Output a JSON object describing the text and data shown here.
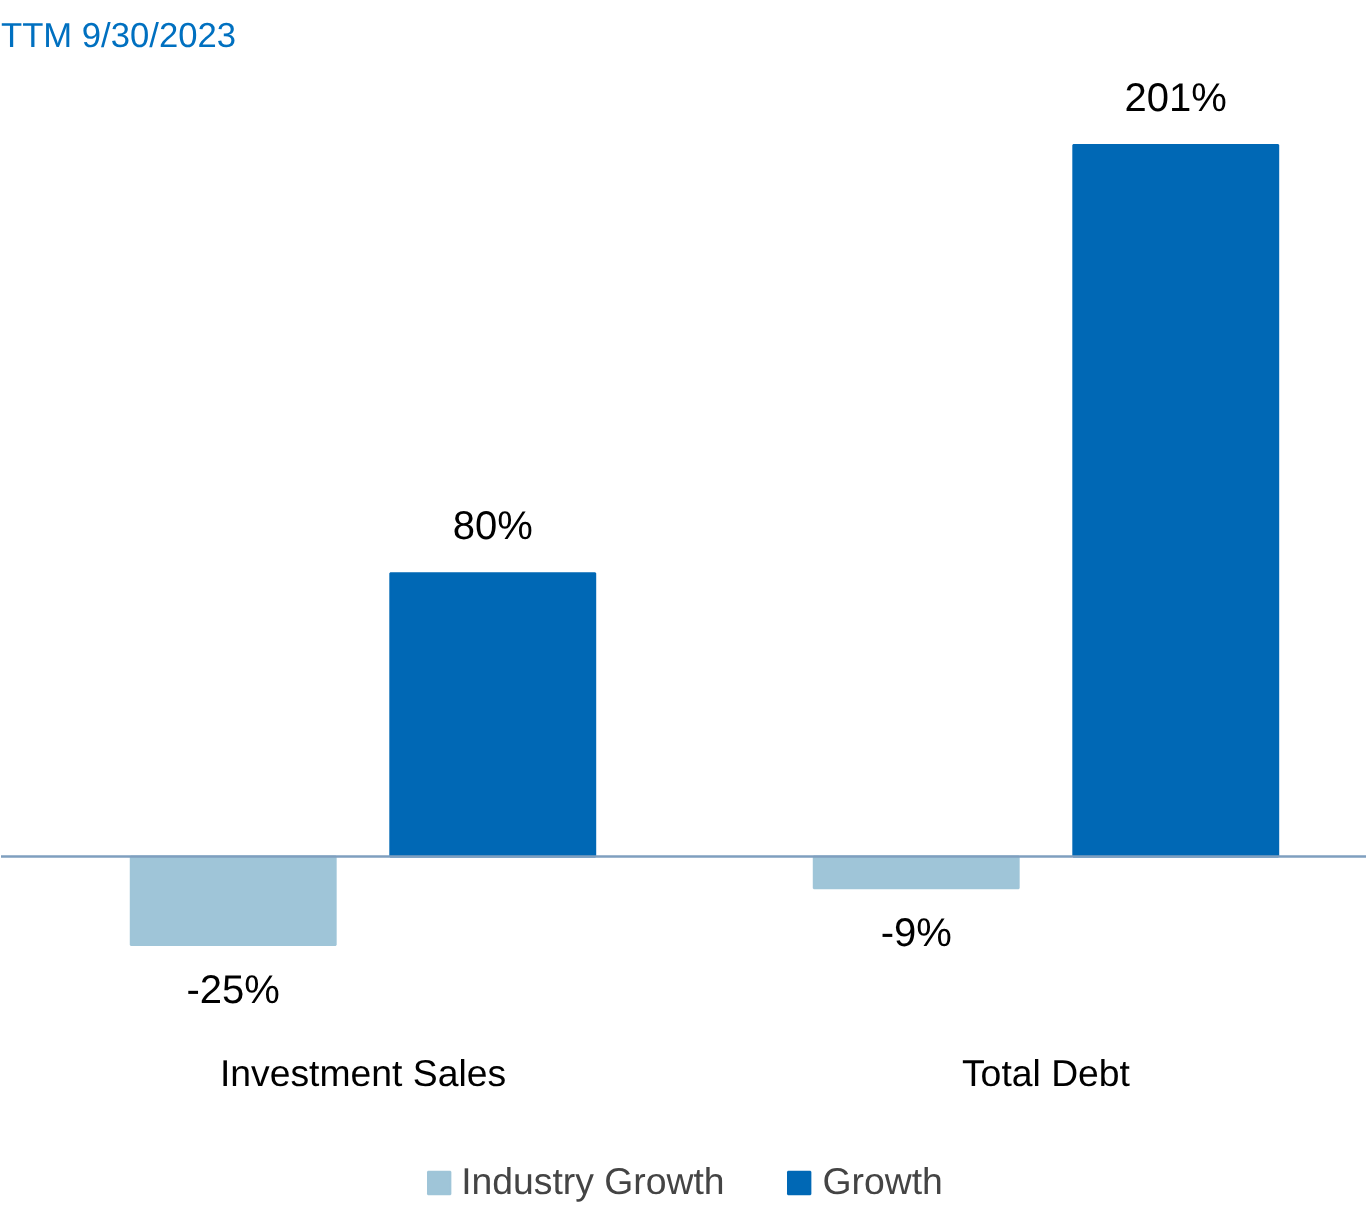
{
  "chart_data": {
    "type": "bar",
    "title": "TTM 9/30/2023",
    "categories": [
      "Investment Sales",
      "Total Debt"
    ],
    "series": [
      {
        "name": "Industry Growth",
        "color": "#9fc5d8",
        "values": [
          -25,
          -9
        ],
        "value_labels": [
          "-25%",
          "-9%"
        ]
      },
      {
        "name": "Growth",
        "color": "#0068b5",
        "values": [
          80,
          201
        ],
        "value_labels": [
          "80%",
          "201%"
        ]
      }
    ],
    "ref_lines": [
      {
        "axis": "y",
        "value": 0,
        "color": "#7f9fbf"
      }
    ],
    "legend": "bottom",
    "grid": false
  }
}
